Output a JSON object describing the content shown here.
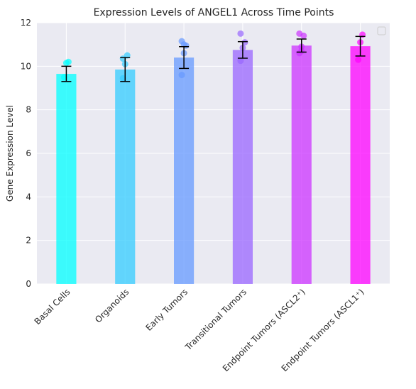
{
  "chart_data": {
    "type": "bar",
    "title": "Expression Levels of ANGEL1 Across Time Points",
    "xlabel": "",
    "ylabel": "Gene Expression Level",
    "ylim": [
      0,
      12
    ],
    "yticks": [
      0,
      2,
      4,
      6,
      8,
      10,
      12
    ],
    "categories": [
      "Basal Cells",
      "Organoids",
      "Early Tumors",
      "Transitional Tumors",
      "Endpoint Tumors (ASCL2⁺)",
      "Endpoint Tumors (ASCL1⁺)"
    ],
    "values": [
      9.65,
      9.85,
      10.4,
      10.75,
      10.95,
      10.92
    ],
    "errors": [
      0.35,
      0.55,
      0.5,
      0.38,
      0.3,
      0.45
    ],
    "bar_colors": [
      "#00ffff",
      "#33ccff",
      "#6699ff",
      "#9966ff",
      "#cc33ff",
      "#ff00ff"
    ],
    "points": [
      [
        9.5,
        10.15,
        10.2
      ],
      [
        9.45,
        10.1,
        10.5,
        10.35
      ],
      [
        9.6,
        10.6,
        10.95,
        11.15,
        11.0
      ],
      [
        10.25,
        10.85,
        11.1,
        11.5
      ],
      [
        10.6,
        10.9,
        11.4,
        11.5,
        10.7
      ],
      [
        10.3,
        11.1,
        11.45
      ]
    ],
    "grid": true,
    "legend": "top-right",
    "background": "#eaeaf2"
  }
}
